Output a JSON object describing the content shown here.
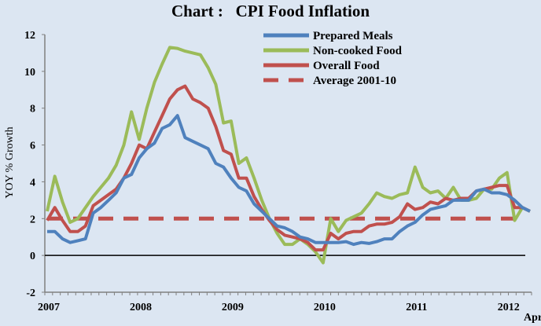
{
  "chart_data": {
    "type": "line",
    "title": "Chart :   CPI Food Inflation",
    "xlabel": "",
    "ylabel": "YOY % Growth",
    "ylim": [
      -2,
      12
    ],
    "yticks": [
      -2,
      0,
      2,
      4,
      6,
      8,
      10,
      12
    ],
    "x_start": "2007-01",
    "x_end": "2012-04",
    "x_tick_labels": [
      "2007",
      "2008",
      "2009",
      "2010",
      "2011",
      "2012"
    ],
    "x_end_label": "Apr",
    "legend_position": "top-right",
    "series": [
      {
        "name": "Prepared Meals",
        "color": "#4f81bd",
        "style": "solid",
        "values": [
          1.3,
          1.3,
          0.9,
          0.7,
          0.8,
          0.9,
          2.3,
          2.6,
          3.0,
          3.4,
          4.2,
          4.4,
          5.3,
          5.8,
          6.1,
          6.9,
          7.1,
          7.6,
          6.4,
          6.2,
          6.0,
          5.8,
          5.0,
          4.8,
          4.2,
          3.7,
          3.5,
          2.8,
          2.4,
          2.0,
          1.6,
          1.5,
          1.3,
          1.0,
          0.9,
          0.7,
          0.7,
          0.7,
          0.7,
          0.75,
          0.6,
          0.7,
          0.65,
          0.75,
          0.9,
          0.9,
          1.3,
          1.6,
          1.8,
          2.2,
          2.5,
          2.6,
          2.7,
          3.0,
          3.0,
          3.0,
          3.5,
          3.6,
          3.4,
          3.4,
          3.3,
          3.0,
          2.6,
          2.4
        ]
      },
      {
        "name": "Non-cooked Food",
        "color": "#9bbb59",
        "style": "solid",
        "values": [
          2.4,
          4.3,
          2.9,
          1.8,
          2.0,
          2.6,
          3.2,
          3.7,
          4.2,
          4.9,
          6.0,
          7.8,
          6.3,
          8.0,
          9.4,
          10.4,
          11.3,
          11.25,
          11.1,
          11.0,
          10.9,
          10.2,
          9.3,
          7.2,
          7.3,
          5.0,
          5.3,
          4.2,
          3.0,
          2.0,
          1.2,
          0.6,
          0.6,
          0.9,
          0.6,
          0.2,
          -0.4,
          2.0,
          1.3,
          1.9,
          2.1,
          2.3,
          2.8,
          3.4,
          3.2,
          3.1,
          3.3,
          3.4,
          4.8,
          3.7,
          3.4,
          3.5,
          3.1,
          3.7,
          3.0,
          3.0,
          3.1,
          3.6,
          3.6,
          4.2,
          4.5,
          1.9,
          2.6,
          2.4
        ]
      },
      {
        "name": "Overall Food",
        "color": "#c0504d",
        "style": "solid",
        "values": [
          1.9,
          2.6,
          1.9,
          1.3,
          1.3,
          1.6,
          2.7,
          3.0,
          3.3,
          3.6,
          4.2,
          5.0,
          6.0,
          5.8,
          6.7,
          7.6,
          8.5,
          9.0,
          9.2,
          8.5,
          8.3,
          8.0,
          7.0,
          5.7,
          5.5,
          4.2,
          4.2,
          3.2,
          2.5,
          1.9,
          1.4,
          1.1,
          1.0,
          0.9,
          0.7,
          0.3,
          0.3,
          1.2,
          0.9,
          1.2,
          1.3,
          1.3,
          1.6,
          1.7,
          1.7,
          1.8,
          2.1,
          2.8,
          2.5,
          2.6,
          2.9,
          2.8,
          3.1,
          3.0,
          3.1,
          3.1,
          3.5,
          3.6,
          3.7,
          3.8,
          3.8,
          2.6,
          2.6,
          2.4
        ]
      },
      {
        "name": "Average 2001-10",
        "color": "#c0504d",
        "style": "dashed",
        "values_constant": 2.0
      }
    ]
  }
}
